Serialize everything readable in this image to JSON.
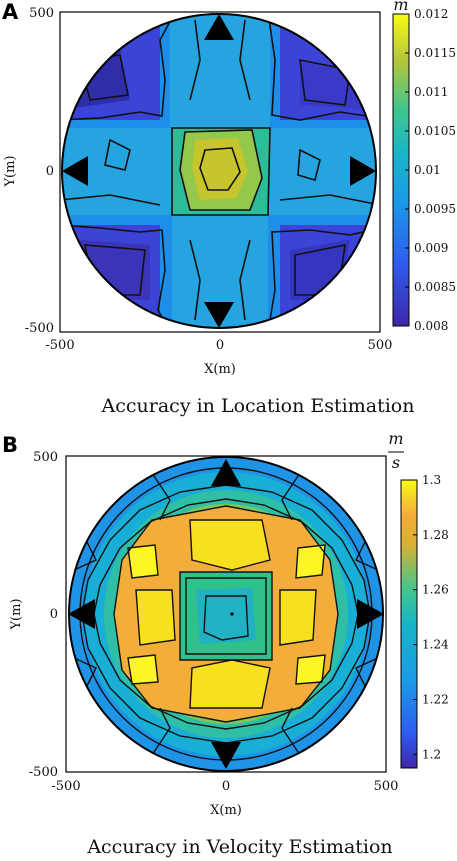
{
  "chart_data": [
    {
      "panel_label": "A",
      "type": "heatmap",
      "title": "Accuracy in Location Estimation",
      "xlabel": "X(m)",
      "ylabel": "Y(m)",
      "unit_num": "m",
      "unit_den": "",
      "xlim": [
        -500,
        500
      ],
      "ylim": [
        -500,
        500
      ],
      "x_ticks": [
        "-500",
        "0",
        "500"
      ],
      "y_ticks": [
        "500",
        "0",
        "-500"
      ],
      "colorbar_range": [
        0.008,
        0.012
      ],
      "colorbar_ticks": [
        "0.012",
        "0.0115",
        "0.011",
        "0.0105",
        "0.01",
        "0.0095",
        "0.009",
        "0.0085",
        "0.008"
      ],
      "colorbar_values": [
        0.012,
        0.0115,
        0.011,
        0.0105,
        0.01,
        0.0095,
        0.009,
        0.0085,
        0.008
      ],
      "regions": [
        {
          "name": "outer-edge",
          "value": 0.0087
        },
        {
          "name": "cross-arms",
          "value": 0.0093
        },
        {
          "name": "inner-square",
          "value": 0.0103
        },
        {
          "name": "core",
          "value": 0.0112
        }
      ],
      "markers": [
        {
          "name": "top",
          "x": 0,
          "y": 470
        },
        {
          "name": "bottom",
          "x": 0,
          "y": -470
        },
        {
          "name": "left",
          "x": -470,
          "y": 0
        },
        {
          "name": "right",
          "x": 470,
          "y": 0
        }
      ]
    },
    {
      "panel_label": "B",
      "type": "heatmap",
      "title": "Accuracy in Velocity Estimation",
      "xlabel": "X(m)",
      "ylabel": "Y(m)",
      "unit_num": "m",
      "unit_den": "s",
      "xlim": [
        -500,
        500
      ],
      "ylim": [
        -500,
        500
      ],
      "x_ticks": [
        "-500",
        "0",
        "500"
      ],
      "y_ticks": [
        "500",
        "0",
        "-500"
      ],
      "colorbar_range": [
        1.195,
        1.3
      ],
      "colorbar_ticks": [
        "1.3",
        "1.28",
        "1.26",
        "1.24",
        "1.22",
        "1.2"
      ],
      "colorbar_values": [
        1.3,
        1.28,
        1.26,
        1.24,
        1.22,
        1.2
      ],
      "regions": [
        {
          "name": "outer-ring",
          "value": 1.22
        },
        {
          "name": "ring-2",
          "value": 1.24
        },
        {
          "name": "ring-3",
          "value": 1.26
        },
        {
          "name": "peak-band",
          "value": 1.28
        },
        {
          "name": "center-square",
          "value": 1.255
        },
        {
          "name": "center-core",
          "value": 1.245
        }
      ],
      "hot_spots": [
        {
          "x": -150,
          "y": 200,
          "value": 1.295
        },
        {
          "x": 150,
          "y": 200,
          "value": 1.295
        },
        {
          "x": -150,
          "y": -200,
          "value": 1.295
        },
        {
          "x": 150,
          "y": -200,
          "value": 1.295
        }
      ],
      "markers": [
        {
          "name": "top",
          "x": 0,
          "y": 470
        },
        {
          "name": "bottom",
          "x": 0,
          "y": -470
        },
        {
          "name": "left",
          "x": -470,
          "y": 0
        },
        {
          "name": "right",
          "x": 470,
          "y": 0
        }
      ]
    }
  ]
}
